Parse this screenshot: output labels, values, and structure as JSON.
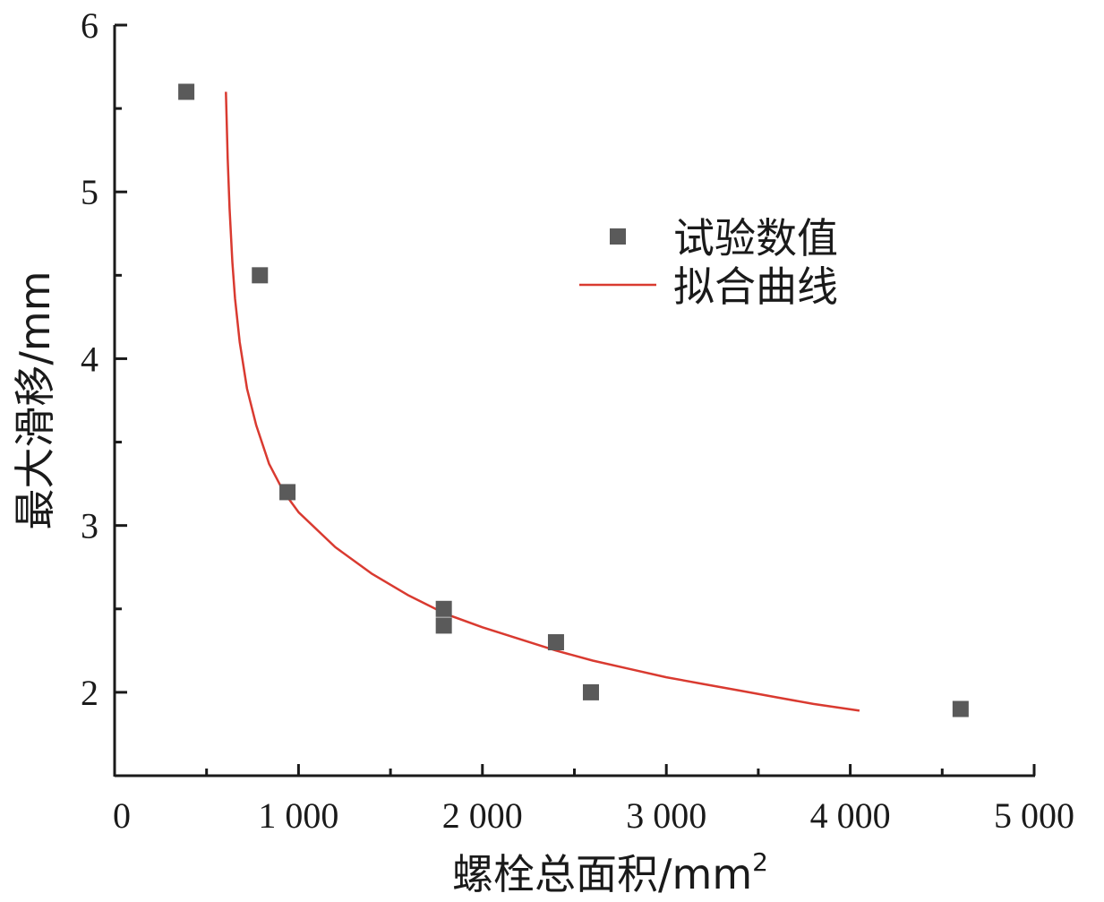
{
  "chart_data": {
    "type": "scatter",
    "xlabel": "螺栓总面积/mm",
    "xlabel_sup": "2",
    "ylabel": "最大滑移/mm",
    "xlim": [
      0,
      5000
    ],
    "ylim": [
      1.5,
      6
    ],
    "x_ticks": [
      0,
      1000,
      2000,
      3000,
      4000,
      5000
    ],
    "x_tick_labels": [
      "0",
      "1 000",
      "2 000",
      "3 000",
      "4 000",
      "5 000"
    ],
    "y_ticks": [
      2,
      3,
      4,
      5,
      6
    ],
    "y_tick_labels": [
      "2",
      "3",
      "4",
      "5",
      "6"
    ],
    "grid": false,
    "legend_position": "upper-right",
    "series": [
      {
        "name": "试验数值",
        "kind": "scatter",
        "marker": "square",
        "color": "#5a5a5a",
        "points": [
          [
            390,
            5.6
          ],
          [
            790,
            4.5
          ],
          [
            940,
            3.2
          ],
          [
            1790,
            2.5
          ],
          [
            1790,
            2.4
          ],
          [
            2400,
            2.3
          ],
          [
            2590,
            2.0
          ],
          [
            4600,
            1.9
          ]
        ]
      },
      {
        "name": "拟合曲线",
        "kind": "line",
        "color": "#d93a30",
        "points": [
          [
            605,
            5.6
          ],
          [
            615,
            5.2
          ],
          [
            625,
            4.9
          ],
          [
            640,
            4.58
          ],
          [
            655,
            4.36
          ],
          [
            680,
            4.1
          ],
          [
            720,
            3.82
          ],
          [
            770,
            3.6
          ],
          [
            840,
            3.37
          ],
          [
            920,
            3.2
          ],
          [
            1000,
            3.08
          ],
          [
            1200,
            2.87
          ],
          [
            1400,
            2.71
          ],
          [
            1600,
            2.58
          ],
          [
            1800,
            2.47
          ],
          [
            2000,
            2.39
          ],
          [
            2200,
            2.32
          ],
          [
            2400,
            2.25
          ],
          [
            2600,
            2.19
          ],
          [
            2800,
            2.14
          ],
          [
            3000,
            2.09
          ],
          [
            3200,
            2.05
          ],
          [
            3400,
            2.01
          ],
          [
            3600,
            1.97
          ],
          [
            3800,
            1.93
          ],
          [
            4050,
            1.89
          ]
        ]
      }
    ]
  }
}
